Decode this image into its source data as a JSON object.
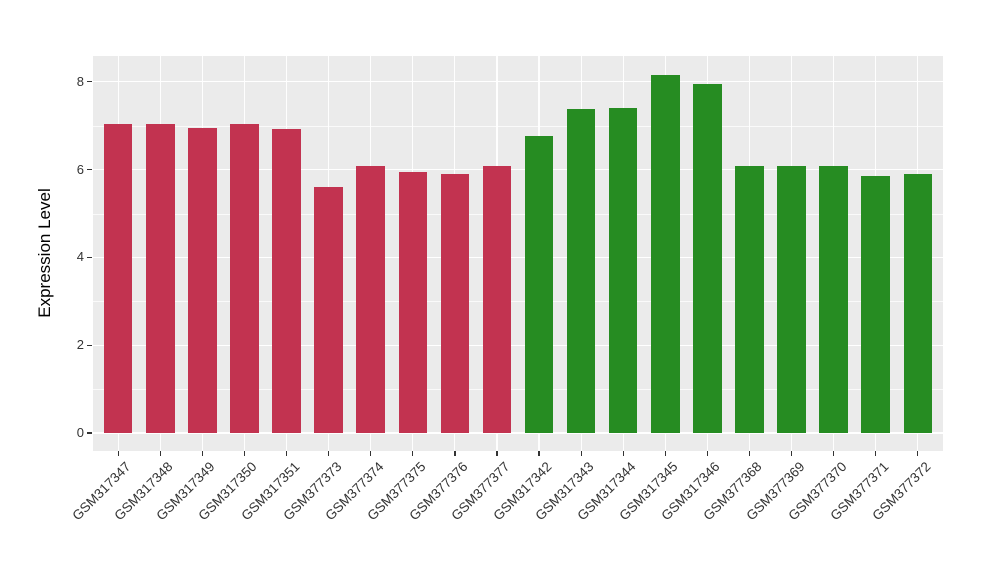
{
  "chart_data": {
    "type": "bar",
    "title": "",
    "xlabel": "",
    "ylabel": "Expression Level",
    "categories": [
      "GSM317347",
      "GSM317348",
      "GSM317349",
      "GSM317350",
      "GSM317351",
      "GSM377373",
      "GSM377374",
      "GSM377375",
      "GSM377376",
      "GSM377377",
      "GSM317342",
      "GSM317343",
      "GSM317344",
      "GSM317345",
      "GSM317346",
      "GSM377368",
      "GSM377369",
      "GSM377370",
      "GSM377371",
      "GSM377372"
    ],
    "values": [
      7.04,
      7.04,
      6.94,
      7.04,
      6.93,
      5.61,
      6.08,
      5.95,
      5.9,
      6.09,
      6.77,
      7.37,
      7.4,
      8.16,
      7.94,
      6.08,
      6.08,
      6.08,
      5.86,
      5.89
    ],
    "bar_colors": [
      "#C23350",
      "#C23350",
      "#C23350",
      "#C23350",
      "#C23350",
      "#C23350",
      "#C23350",
      "#C23350",
      "#C23350",
      "#C23350",
      "#268C22",
      "#268C22",
      "#268C22",
      "#268C22",
      "#268C22",
      "#268C22",
      "#268C22",
      "#268C22",
      "#268C22",
      "#268C22"
    ],
    "yticks": [
      0,
      2,
      4,
      6,
      8
    ],
    "ylim": [
      0,
      8.6
    ],
    "grid": "on",
    "legend": "none",
    "colors": {
      "panel_background": "#EBEBEB",
      "grid": "#FFFFFF",
      "axis_text": "#333333",
      "axis_title": "#000000",
      "red_group": "#C23350",
      "green_group": "#268C22"
    }
  }
}
